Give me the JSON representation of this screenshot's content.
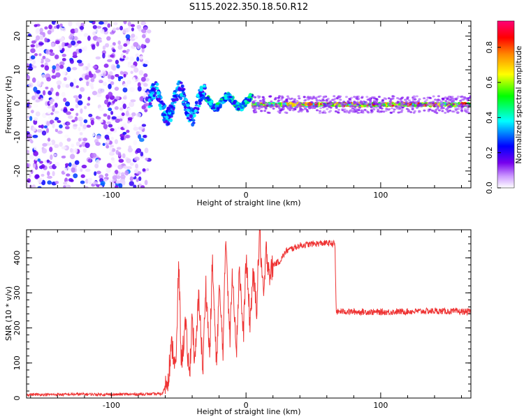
{
  "title": "S115.2022.350.18.50.R12",
  "chart_data": [
    {
      "type": "heatmap",
      "xlabel": "Height of straight line (km)",
      "ylabel": "Frequency (Hz)",
      "xlim": [
        -163,
        167
      ],
      "ylim": [
        -25,
        24.5
      ],
      "xticks": [
        -100,
        0,
        100
      ],
      "yticks": [
        -20,
        -10,
        0,
        10,
        20
      ],
      "colorbar": {
        "label": "Normalized spectral amplitude",
        "range": [
          0,
          0.95
        ],
        "ticks": [
          0.0,
          0.2,
          0.4,
          0.6,
          0.8
        ],
        "colors": [
          "#ffffff",
          "#cc99ff",
          "#7700ee",
          "#0000ff",
          "#00ffff",
          "#00ff00",
          "#ffff00",
          "#ff8800",
          "#ff0000",
          "#ff0077"
        ]
      },
      "regions": [
        {
          "x_range": [
            -163,
            -72
          ],
          "freq_range": [
            -25,
            24.5
          ],
          "amplitude": 0.15,
          "note": "noise"
        },
        {
          "x_range": [
            -72,
            -30
          ],
          "freq_center": 0,
          "freq_spread": 5,
          "amplitude": 0.4
        },
        {
          "x_range": [
            -30,
            5
          ],
          "freq_center": 0.5,
          "freq_spread": 2,
          "amplitude": 0.5
        },
        {
          "x_range": [
            5,
            167
          ],
          "freq_center": -0.3,
          "freq_spread": 0.6,
          "amplitude": 0.9
        }
      ]
    },
    {
      "type": "line",
      "xlabel": "Height of straight line (km)",
      "ylabel": "SNR (10 * v/v)",
      "xlim": [
        -163,
        167
      ],
      "ylim": [
        0,
        480
      ],
      "xticks": [
        -100,
        0,
        100
      ],
      "yticks": [
        0,
        100,
        200,
        300,
        400
      ],
      "series": [
        {
          "color": "#ee3333",
          "x": [
            -163,
            -140,
            -120,
            -100,
            -80,
            -62,
            -58,
            -55,
            -52,
            -50,
            -48,
            -45,
            -42,
            -40,
            -38,
            -35,
            -32,
            -30,
            -27,
            -25,
            -22,
            -20,
            -17,
            -15,
            -12,
            -10,
            -7,
            -5,
            -2,
            0,
            3,
            5,
            8,
            10,
            13,
            15,
            18,
            20,
            25,
            30,
            40,
            50,
            60,
            66,
            67,
            70,
            80,
            100,
            120,
            140,
            167
          ],
          "y": [
            10,
            10,
            11,
            10,
            11,
            12,
            60,
            150,
            80,
            390,
            100,
            210,
            60,
            240,
            90,
            300,
            70,
            330,
            120,
            390,
            90,
            310,
            140,
            470,
            170,
            360,
            140,
            380,
            170,
            400,
            210,
            350,
            260,
            480,
            280,
            420,
            350,
            380,
            390,
            420,
            435,
            440,
            442,
            440,
            245,
            247,
            246,
            245,
            247,
            248,
            246
          ]
        }
      ]
    }
  ]
}
